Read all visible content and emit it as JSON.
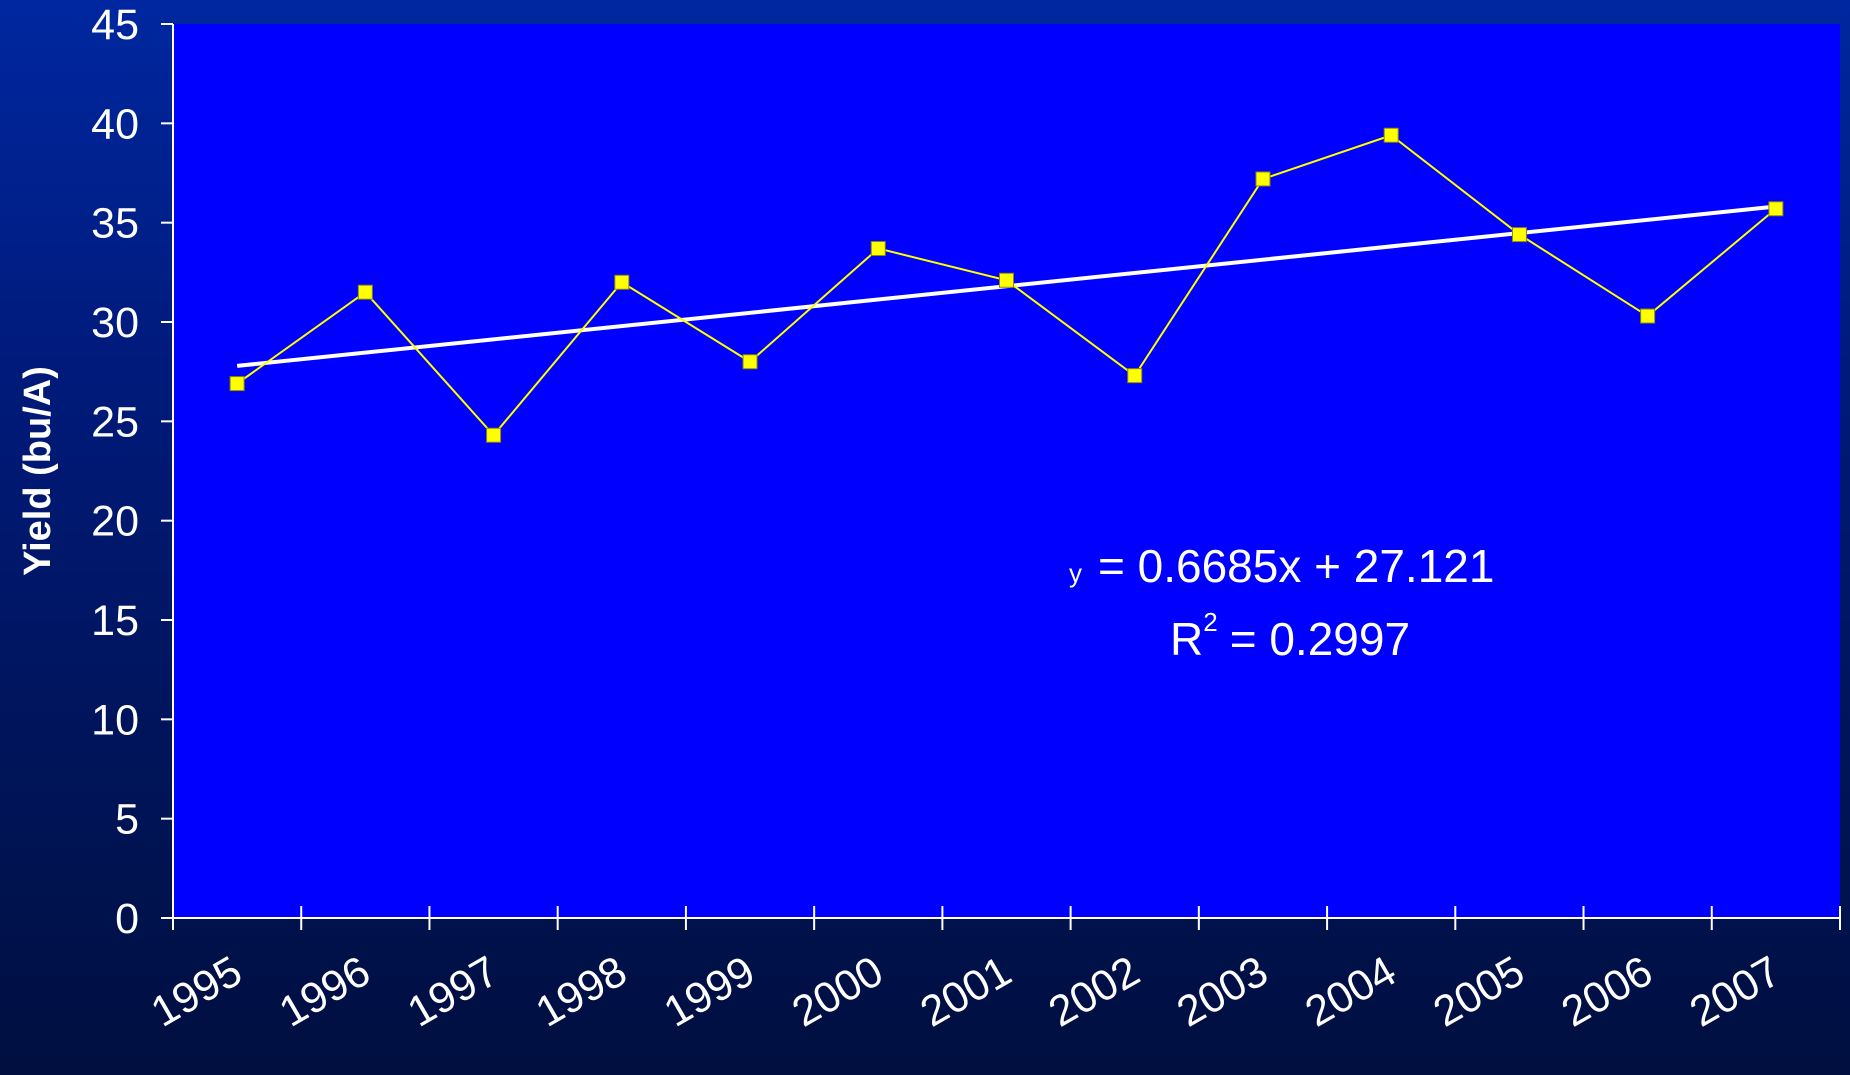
{
  "chart_data": {
    "type": "line",
    "title": "",
    "xlabel": "",
    "ylabel": "Yield (bu/A)",
    "categories": [
      "1995",
      "1996",
      "1997",
      "1998",
      "1999",
      "2000",
      "2001",
      "2002",
      "2003",
      "2004",
      "2005",
      "2006",
      "2007"
    ],
    "series": [
      {
        "values": [
          26.9,
          31.5,
          24.3,
          32.0,
          28.0,
          33.7,
          32.1,
          27.3,
          37.2,
          39.4,
          34.4,
          30.3,
          35.7
        ],
        "color": "#ffff00",
        "marker": "square"
      }
    ],
    "trendline": {
      "slope": 0.6685,
      "intercept": 27.121,
      "color": "#ffffff",
      "equation_prefix": "y",
      "equation_rest": "= 0.6685x + 27.121",
      "r2_label": "R",
      "r2_superscript": "2",
      "r2_rest": "= 0.2997"
    },
    "ylim": [
      0,
      45
    ],
    "yticks": [
      0,
      5,
      10,
      15,
      20,
      25,
      30,
      35,
      40,
      45
    ],
    "grid": false,
    "legend": "none",
    "plot_background": "#0000ff",
    "axis_color": "#ffffff"
  }
}
